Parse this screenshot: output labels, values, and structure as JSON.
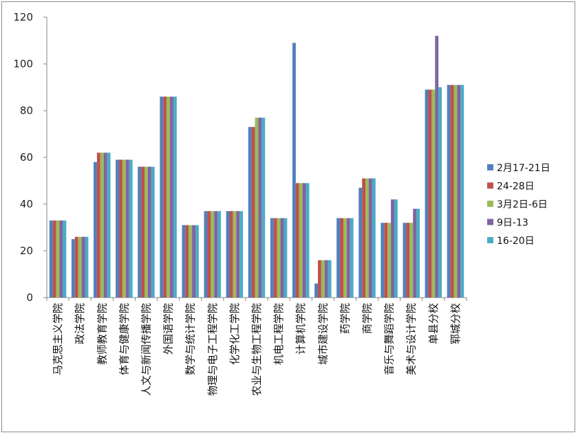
{
  "chart_data": {
    "type": "bar",
    "ylim": [
      0,
      120
    ],
    "yticks": [
      0,
      20,
      40,
      60,
      80,
      100,
      120
    ],
    "grid": false,
    "legend_position": "right",
    "categories": [
      "马克思主义学院",
      "政法学院",
      "教师教育学院",
      "体育与健康学院",
      "人文与新闻传播学院",
      "外国语学院",
      "数学与统计学院",
      "物理与电子工程学院",
      "化学化工学院",
      "农业与生物工程学院",
      "机电工程学院",
      "计算机学院",
      "城市建设学院",
      "药学院",
      "商学院",
      "音乐与舞蹈学院",
      "美术与设计学院",
      "单县分校",
      "郓城分校"
    ],
    "series": [
      {
        "name": "2月17-21日",
        "color": "#4f81bd",
        "values": [
          33,
          25,
          58,
          59,
          56,
          86,
          31,
          37,
          37,
          73,
          34,
          109,
          6,
          34,
          47,
          32,
          32,
          89,
          91
        ]
      },
      {
        "name": "24-28日",
        "color": "#c0504d",
        "values": [
          33,
          26,
          62,
          59,
          56,
          86,
          31,
          37,
          37,
          73,
          34,
          49,
          16,
          34,
          51,
          32,
          32,
          89,
          91
        ]
      },
      {
        "name": "3月2日-6日",
        "color": "#9bbb59",
        "values": [
          33,
          26,
          62,
          59,
          56,
          86,
          31,
          37,
          37,
          77,
          34,
          49,
          16,
          34,
          51,
          32,
          32,
          89,
          91
        ]
      },
      {
        "name": "9日-13",
        "color": "#8064a2",
        "values": [
          33,
          26,
          62,
          59,
          56,
          86,
          31,
          37,
          37,
          77,
          34,
          49,
          16,
          34,
          51,
          42,
          38,
          112,
          91
        ]
      },
      {
        "name": "16-20日",
        "color": "#4bacc6",
        "values": [
          33,
          26,
          62,
          59,
          56,
          86,
          31,
          37,
          37,
          77,
          34,
          49,
          16,
          34,
          51,
          42,
          38,
          90,
          91
        ]
      }
    ]
  }
}
